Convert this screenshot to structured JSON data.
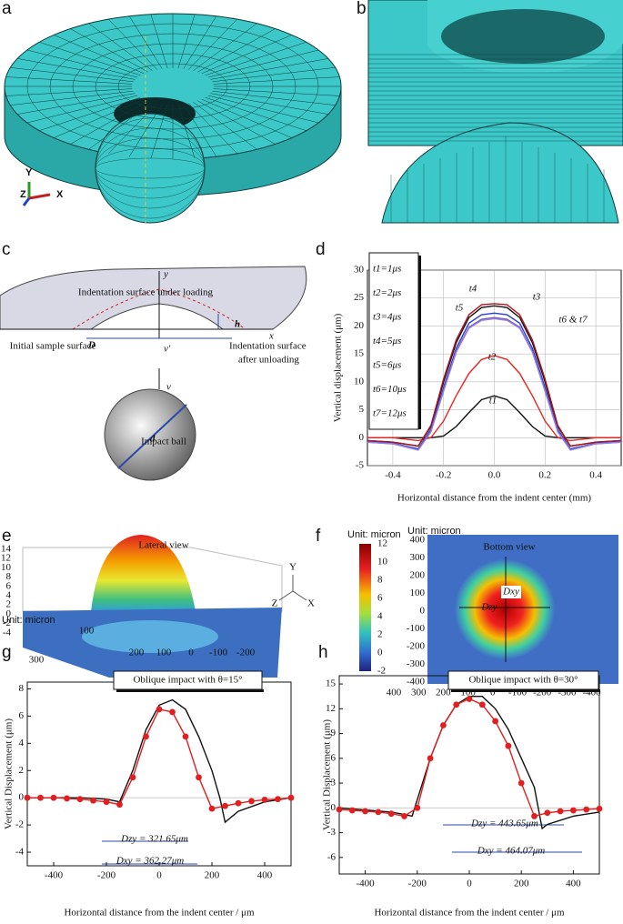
{
  "panels": {
    "a": {
      "label": "a",
      "axes": [
        "Y",
        "Z",
        "X"
      ]
    },
    "b": {
      "label": "b"
    },
    "c": {
      "label": "c",
      "y": "y",
      "x": "x",
      "loading": "Indentation surface under loading",
      "h": "h",
      "D": "D",
      "v_prime": "v'",
      "initial": "Initial sample surface",
      "unloading": [
        "Indentation surface",
        "after unloading"
      ],
      "v": "v",
      "ball": "Impact ball",
      "d": "d"
    },
    "e": {
      "label": "e",
      "title": "Lateral view",
      "zticks": [
        14,
        12,
        10,
        8,
        6,
        4,
        2,
        0,
        -2,
        -4
      ],
      "unit": "Unit: micron",
      "depth_ticks": [
        100,
        300
      ],
      "front_ticks": [
        200,
        100,
        0,
        -100,
        -200
      ],
      "axes": [
        "Y",
        "Z",
        "X"
      ]
    },
    "f": {
      "label": "f",
      "title": "Bottom view",
      "unit": "Unit: micron",
      "colorbar_ticks": [
        12,
        10,
        8,
        6,
        4,
        2,
        0,
        -2
      ],
      "plot_unit": "Unit: micron",
      "yticks": [
        400,
        300,
        200,
        100,
        0,
        -100,
        -200,
        -300,
        -400
      ],
      "xticks": [
        400,
        300,
        200,
        100,
        0,
        -100,
        -200,
        -300,
        -400
      ],
      "dxy": "Dxy",
      "dzy": "Dzy"
    }
  },
  "chart_data": [
    {
      "type": "line",
      "panel": "d",
      "xlabel": "Horizontal distance from the indent center (mm)",
      "ylabel": "Vertical displacement (μm)",
      "x": [
        -0.5,
        -0.4,
        -0.3,
        -0.25,
        -0.2,
        -0.15,
        -0.1,
        -0.05,
        0,
        0.05,
        0.1,
        0.15,
        0.2,
        0.25,
        0.3,
        0.4,
        0.5
      ],
      "xlim": [
        -0.5,
        0.5
      ],
      "xticks": [
        -0.4,
        -0.2,
        {
          "value": 0,
          "label": "0.0"
        },
        0.2,
        0.4
      ],
      "ylim": [
        -5,
        30
      ],
      "yticks": [
        -5,
        0,
        5,
        10,
        15,
        20,
        25,
        30
      ],
      "grid": true,
      "legend": "upper left",
      "series": [
        {
          "name": "t1=1μs",
          "color": "#111111",
          "values": [
            0,
            0,
            0,
            0,
            0.3,
            2,
            4.5,
            6.8,
            7.5,
            6.8,
            4.5,
            2,
            0.3,
            0,
            0,
            0,
            0
          ]
        },
        {
          "name": "t2=2μs",
          "color": "#e8251f",
          "values": [
            0,
            0,
            -0.5,
            0,
            3,
            7.5,
            11.5,
            14,
            14.7,
            14,
            11.5,
            7.5,
            3,
            0,
            -0.5,
            0,
            0
          ]
        },
        {
          "name": "t3=4μs",
          "color": "#111111",
          "values": [
            -0.5,
            -0.8,
            -1.5,
            2,
            10,
            17,
            21.5,
            23.3,
            23.6,
            23.3,
            21.5,
            17,
            10,
            2,
            -1.5,
            -0.8,
            -0.5
          ]
        },
        {
          "name": "t4=5μs",
          "color": "#b0141a",
          "values": [
            -0.5,
            -0.8,
            -1.5,
            2.2,
            10.5,
            17.5,
            22,
            23.8,
            24,
            23.8,
            22,
            17.5,
            10.5,
            2.2,
            -1.5,
            -0.8,
            -0.5
          ]
        },
        {
          "name": "t5=6μs",
          "color": "#2b3fd0",
          "values": [
            -0.7,
            -1,
            -2,
            1.5,
            9,
            16,
            20.5,
            22,
            22.3,
            22,
            20.5,
            16,
            9,
            1.5,
            -2,
            -1,
            -0.7
          ]
        },
        {
          "name": "t6=10μs",
          "color": "#7a5cc0",
          "values": [
            -0.8,
            -1.1,
            -2.2,
            1.2,
            8.5,
            15.5,
            19.8,
            21.2,
            21.5,
            21.2,
            19.8,
            15.5,
            8.5,
            1.2,
            -2.2,
            -1.1,
            -0.8
          ]
        },
        {
          "name": "t7=12μs",
          "color": "#9a7fd8",
          "values": [
            -0.8,
            -1.1,
            -2.2,
            1,
            8.3,
            15.3,
            19.6,
            21,
            21.3,
            21,
            19.6,
            15.3,
            8.3,
            1,
            -2.2,
            -1.1,
            -0.8
          ]
        }
      ],
      "annotations": [
        "t1",
        "t2",
        "t3",
        "t4",
        "t5",
        "t6 & t7"
      ]
    },
    {
      "type": "line",
      "panel": "g",
      "title": "Oblique impact with θ=15°",
      "xlabel": "Horizontal distance from the indent center / μm",
      "ylabel": "Vertical Displacement (μm)",
      "xlim": [
        -500,
        500
      ],
      "xticks": [
        -400,
        -200,
        0,
        200,
        400
      ],
      "ylim": [
        -5,
        8.5
      ],
      "yticks": [
        -4,
        -2,
        0,
        2,
        4,
        6,
        8
      ],
      "series": [
        {
          "color": "#111111",
          "x": [
            -500,
            -300,
            -200,
            -150,
            -100,
            -50,
            0,
            50,
            100,
            150,
            200,
            230,
            250,
            300,
            400,
            500
          ],
          "values": [
            0,
            0,
            -0.1,
            -0.3,
            2,
            5,
            6.8,
            7.2,
            6.5,
            4.5,
            2,
            0,
            -1.8,
            -1,
            -0.3,
            0
          ]
        },
        {
          "color": "#e02020",
          "marker": "circle",
          "x": [
            -500,
            -450,
            -400,
            -350,
            -300,
            -250,
            -200,
            -150,
            -100,
            -50,
            0,
            50,
            100,
            150,
            200,
            250,
            300,
            350,
            400,
            450,
            500
          ],
          "values": [
            0,
            0,
            0,
            -0.05,
            -0.1,
            -0.2,
            -0.3,
            -0.5,
            1.5,
            4.5,
            6.5,
            6.3,
            4.5,
            1.5,
            -0.8,
            -0.6,
            -0.4,
            -0.25,
            -0.15,
            -0.1,
            0
          ]
        }
      ],
      "annotations": [
        "Dzy = 321.65μm",
        "Dxy = 362.27μm"
      ]
    },
    {
      "type": "line",
      "panel": "h",
      "title": "Oblique impact with θ=30°",
      "xlabel": "Horizontal distance from the indent center / μm",
      "ylabel": "Vertical Displacement (μm)",
      "xlim": [
        -500,
        500
      ],
      "xticks": [
        -400,
        -200,
        0,
        200,
        400
      ],
      "ylim": [
        -8,
        16
      ],
      "yticks": [
        -6,
        -3,
        0,
        3,
        6,
        9,
        12,
        15
      ],
      "series": [
        {
          "color": "#111111",
          "x": [
            -500,
            -300,
            -250,
            -220,
            -150,
            -100,
            -50,
            0,
            50,
            100,
            150,
            200,
            250,
            280,
            300,
            400,
            500
          ],
          "values": [
            0,
            -0.5,
            -0.8,
            -1,
            6,
            10,
            12.5,
            13.5,
            13.5,
            12,
            9.5,
            6,
            2.5,
            -2.5,
            -2,
            -1,
            -0.5
          ]
        },
        {
          "color": "#e02020",
          "marker": "circle",
          "x": [
            -500,
            -450,
            -400,
            -350,
            -300,
            -250,
            -200,
            -150,
            -100,
            -50,
            0,
            50,
            100,
            150,
            200,
            250,
            300,
            350,
            400,
            450,
            500
          ],
          "values": [
            -0.2,
            -0.3,
            -0.4,
            -0.5,
            -0.7,
            -1,
            0,
            6,
            10,
            12.5,
            13.2,
            12.5,
            10.5,
            7.5,
            3,
            -1,
            -0.6,
            -0.4,
            -0.3,
            -0.2,
            -0.1
          ]
        }
      ],
      "annotations": [
        "Dzy = 443.65μm",
        "Dxy = 464.07μm"
      ]
    }
  ]
}
